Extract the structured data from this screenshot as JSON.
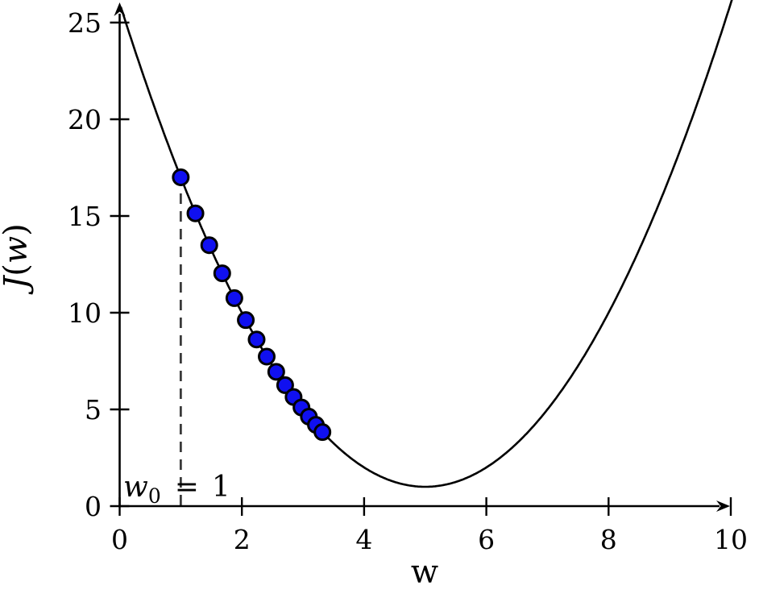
{
  "figure": {
    "background": "#ffffff",
    "axis_color": "#000000"
  },
  "chart_data": {
    "type": "line",
    "title": "",
    "xlabel": "w",
    "ylabel": "J(w)",
    "ylabel_parts": [
      {
        "t": "J",
        "style": "italic"
      },
      {
        "t": "(",
        "style": "normal"
      },
      {
        "t": "w",
        "style": "italic"
      },
      {
        "t": ")",
        "style": "normal"
      }
    ],
    "xlim": [
      0,
      10
    ],
    "ylim": [
      0,
      26.2
    ],
    "x_ticks": [
      0,
      2,
      4,
      6,
      8,
      10
    ],
    "y_ticks": [
      0,
      5,
      10,
      15,
      20,
      25
    ],
    "grid": false,
    "legend_position": "none",
    "curve": {
      "name": "cost-function-parabola",
      "equation": "J(w) = (w - 5)^2 + 1",
      "vertex_w": 5,
      "vertex_J": 1,
      "domain": [
        0.02,
        10.03
      ],
      "color": "#000000"
    },
    "annotation": {
      "var": "w",
      "sub": "0",
      "equals": "=",
      "value": "1",
      "full_label": "w0 = 1",
      "line_w": 1,
      "line_style": "dashed",
      "line_color": "#3a3a3a"
    },
    "series": [
      {
        "name": "gradient-descent-iterates",
        "type": "scatter",
        "marker": "circle",
        "marker_fill": "#1010F0",
        "marker_edge": "#000000",
        "w": [
          1.0,
          1.24,
          1.466,
          1.678,
          1.877,
          2.064,
          2.241,
          2.406,
          2.562,
          2.708,
          2.846,
          2.975,
          3.096,
          3.211,
          3.318
        ],
        "J": [
          17.0,
          15.138,
          13.492,
          12.038,
          10.753,
          9.618,
          8.615,
          7.728,
          6.945,
          6.253,
          5.642,
          5.101,
          4.624,
          4.202,
          3.829
        ]
      }
    ]
  }
}
